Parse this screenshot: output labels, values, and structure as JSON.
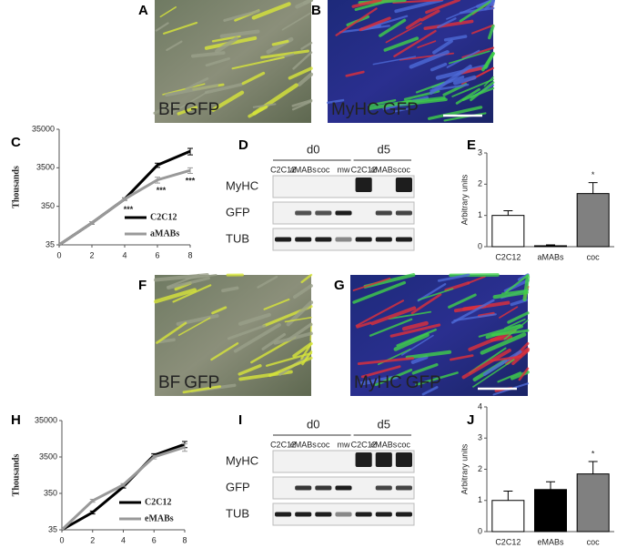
{
  "images": [
    {
      "panel": "A",
      "labels": [
        "BF",
        "GFP"
      ]
    },
    {
      "panel": "B",
      "labels": [
        "MyHC",
        "GFP"
      ]
    },
    {
      "panel": "F",
      "labels": [
        "BF",
        "GFP"
      ]
    },
    {
      "panel": "G",
      "labels": [
        "MyHC",
        "GFP"
      ]
    }
  ],
  "blots": [
    {
      "panel": "D",
      "groups": [
        "d0",
        "d5"
      ],
      "lanes": [
        "C2C12",
        "aMABs",
        "coc",
        "mw",
        "C2C12",
        "aMABs",
        "coc"
      ],
      "rows": [
        "MyHC",
        "GFP",
        "TUB"
      ]
    },
    {
      "panel": "I",
      "groups": [
        "d0",
        "d5"
      ],
      "lanes": [
        "C2C12",
        "eMABs",
        "coc",
        "mw",
        "C2C12",
        "eMABs",
        "coc"
      ],
      "rows": [
        "MyHC",
        "GFP",
        "TUB"
      ]
    }
  ],
  "chart_data": [
    {
      "type": "line",
      "panel": "C",
      "ylabel": "Thousands",
      "log_scale": true,
      "x": [
        0,
        2,
        4,
        6,
        8
      ],
      "xlim": [
        0,
        8
      ],
      "xticks": [
        0,
        2,
        4,
        6,
        8
      ],
      "ylim": [
        35,
        35000
      ],
      "yticks": [
        35,
        350,
        3500,
        35000
      ],
      "legend": "lower right",
      "series": [
        {
          "name": "C2C12",
          "color": "#000000",
          "values": [
            35,
            130,
            540,
            4100,
            9400
          ],
          "errors": [
            0,
            10,
            40,
            500,
            1800
          ]
        },
        {
          "name": "aMABs",
          "color": "#999999",
          "values": [
            35,
            130,
            540,
            1700,
            3000
          ],
          "errors": [
            0,
            10,
            40,
            300,
            500
          ]
        }
      ],
      "annotations": [
        {
          "text": "***",
          "x": 4
        },
        {
          "text": "***",
          "x": 6
        },
        {
          "text": "***",
          "x": 8
        }
      ]
    },
    {
      "type": "bar",
      "panel": "E",
      "ylabel": "Arbitrary units",
      "categories": [
        "C2C12",
        "aMABs",
        "coc"
      ],
      "values": [
        1.0,
        0.03,
        1.7
      ],
      "errors": [
        0.15,
        0.03,
        0.35
      ],
      "colors": [
        "#ffffff",
        "#000000",
        "#808080"
      ],
      "ylim": [
        0,
        3
      ],
      "yticks": [
        0,
        1,
        2,
        3
      ],
      "annotations": [
        {
          "text": "*",
          "category": "coc"
        }
      ]
    },
    {
      "type": "line",
      "panel": "H",
      "ylabel": "Thousands",
      "log_scale": true,
      "x": [
        0,
        2,
        4,
        6,
        8
      ],
      "xlim": [
        0,
        8
      ],
      "xticks": [
        0,
        2,
        4,
        6,
        8
      ],
      "ylim": [
        35,
        35000
      ],
      "yticks": [
        35,
        350,
        3500,
        35000
      ],
      "legend": "lower right",
      "series": [
        {
          "name": "C2C12",
          "color": "#000000",
          "values": [
            35,
            105,
            530,
            3900,
            7800
          ],
          "errors": [
            0,
            10,
            40,
            400,
            1500
          ]
        },
        {
          "name": "eMABs",
          "color": "#999999",
          "values": [
            35,
            220,
            600,
            3500,
            6500
          ],
          "errors": [
            0,
            20,
            50,
            400,
            1500
          ]
        }
      ]
    },
    {
      "type": "bar",
      "panel": "J",
      "ylabel": "Arbitrary units",
      "categories": [
        "C2C12",
        "eMABs",
        "coc"
      ],
      "values": [
        1.0,
        1.35,
        1.85
      ],
      "errors": [
        0.3,
        0.25,
        0.4
      ],
      "colors": [
        "#ffffff",
        "#000000",
        "#808080"
      ],
      "ylim": [
        0,
        4
      ],
      "yticks": [
        0,
        1,
        2,
        3,
        4
      ],
      "annotations": [
        {
          "text": "*",
          "category": "coc"
        }
      ]
    }
  ]
}
